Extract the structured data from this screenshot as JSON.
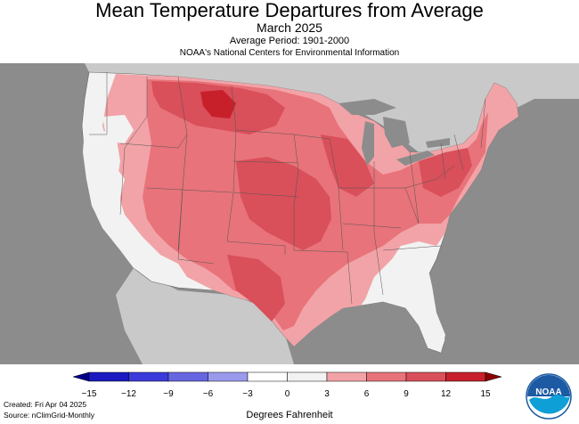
{
  "header": {
    "title": "Mean Temperature Departures from Average",
    "subtitle": "March 2025",
    "period": "Average Period: 1901-2000",
    "organization": "NOAA's National Centers for Environmental Information"
  },
  "map": {
    "variable": "Mean temperature departure from average",
    "units": "Degrees Fahrenheit",
    "region": "Contiguous United States",
    "colors": {
      "background_land": "#c9c9c9",
      "water": "#8c8c8c",
      "near_normal": "#f2f2f2",
      "warm_3_6": "#f2a3a7",
      "warm_6_9": "#e8737a",
      "warm_9_12": "#d94f5a",
      "warm_12_15": "#c8202b"
    }
  },
  "legend": {
    "labels": [
      "−15",
      "−12",
      "−9",
      "−6",
      "−3",
      "0",
      "3",
      "6",
      "9",
      "12",
      "15"
    ],
    "colors": [
      "#1a1ac0",
      "#3b3bdb",
      "#6666e0",
      "#9a9aec",
      "#ffffff",
      "#f2f2f2",
      "#f2a3a7",
      "#e8737a",
      "#d94f5a",
      "#c8202b"
    ]
  },
  "footer": {
    "created": "Created: Fri Apr 04 2025",
    "source": "Source: nClimGrid-Monthly"
  },
  "logo": {
    "text": "NOAA",
    "icon": "noaa-logo-icon"
  }
}
